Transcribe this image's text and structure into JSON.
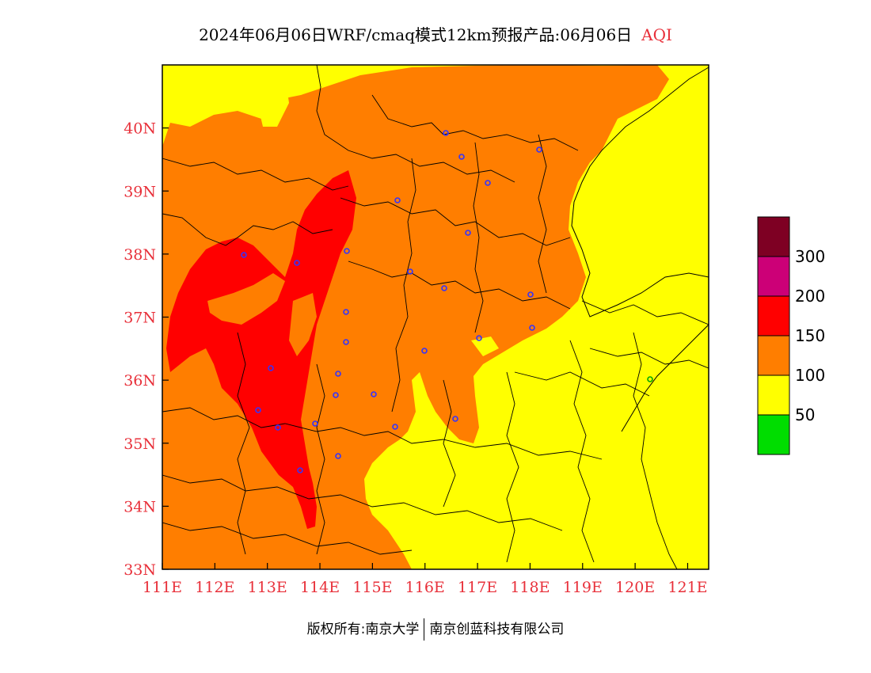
{
  "title": {
    "text": "2024年06月06日WRF/cmaq模式12km预报产品:06月06日",
    "variable": "AQI"
  },
  "map": {
    "lon_range": [
      111,
      121.4
    ],
    "lat_range": [
      33,
      41
    ],
    "x_ticks": [
      "111E",
      "112E",
      "113E",
      "114E",
      "115E",
      "116E",
      "117E",
      "118E",
      "119E",
      "120E",
      "121E"
    ],
    "y_ticks": [
      "33N",
      "34N",
      "35N",
      "36N",
      "37N",
      "38N",
      "39N",
      "40N"
    ],
    "colors": {
      "good": "#00dd00",
      "moderate": "#ffff00",
      "unhealthy_sensitive": "#ff7e00",
      "unhealthy": "#ff0000",
      "very_unhealthy": "#cc0077",
      "hazardous": "#7e0023",
      "station": "#3333ff",
      "tick_text": "#e8303a"
    }
  },
  "colorbar": {
    "labels": [
      "50",
      "100",
      "150",
      "200",
      "300"
    ],
    "colors": [
      "#00dd00",
      "#ffff00",
      "#ff7e00",
      "#ff0000",
      "#cc0077",
      "#7e0023"
    ]
  },
  "footer": {
    "left": "版权所有:南京大学",
    "right": "南京创蓝科技有限公司"
  }
}
